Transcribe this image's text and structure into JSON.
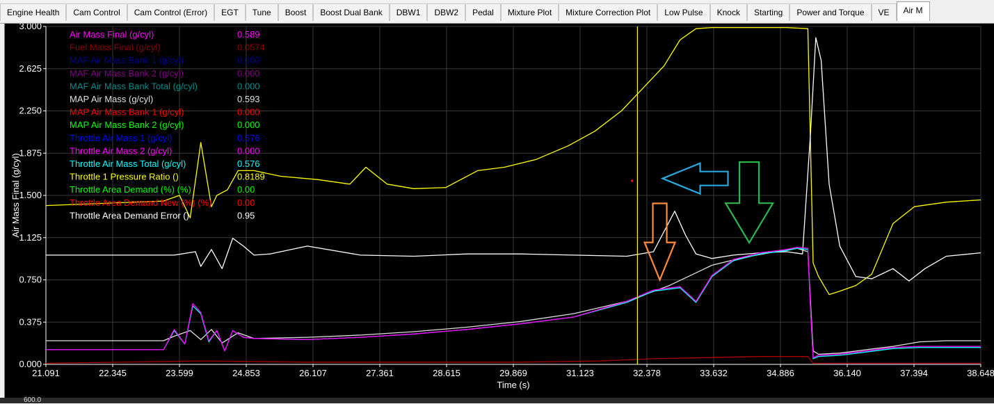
{
  "tabs": [
    {
      "label": "Engine Health"
    },
    {
      "label": "Cam Control"
    },
    {
      "label": "Cam Control (Error)"
    },
    {
      "label": "EGT"
    },
    {
      "label": "Tune"
    },
    {
      "label": "Boost"
    },
    {
      "label": "Boost Dual Bank"
    },
    {
      "label": "DBW1"
    },
    {
      "label": "DBW2"
    },
    {
      "label": "Pedal"
    },
    {
      "label": "Mixture Plot"
    },
    {
      "label": "Mixture Correction Plot"
    },
    {
      "label": "Low Pulse"
    },
    {
      "label": "Knock"
    },
    {
      "label": "Starting"
    },
    {
      "label": "Power and Torque"
    },
    {
      "label": "VE"
    },
    {
      "label": "Air M"
    }
  ],
  "active_tab": 17,
  "bottom_label": "600.0",
  "chart_data": {
    "type": "line",
    "xlabel": "Time (s)",
    "ylabel": "Air Mass Final (g/cyl)",
    "xlim": [
      21.091,
      38.648
    ],
    "ylim": [
      0,
      3.0
    ],
    "x_ticks": [
      "21.091",
      "22.345",
      "23.599",
      "24.853",
      "26.107",
      "27.361",
      "28.615",
      "29.869",
      "31.123",
      "32.378",
      "33.632",
      "34.886",
      "36.140",
      "37.394",
      "38.648"
    ],
    "y_ticks": [
      "0.000",
      "0.375",
      "0.750",
      "1.125",
      "1.500",
      "1.875",
      "2.250",
      "2.625",
      "3.000"
    ],
    "cursor_x": 32.2,
    "legend": [
      {
        "name": "Air Mass Final (g/cyl)",
        "value": "0.589",
        "color": "#ff00ff"
      },
      {
        "name": "Fuel Mass Final (g/cyl)",
        "value": "0.0574",
        "color": "#8b0000"
      },
      {
        "name": "MAF Air Mass Bank 1 (g/cyl)",
        "value": "0.000",
        "color": "#00008b"
      },
      {
        "name": "MAF Air Mass Bank 2  (g/cyl)",
        "value": "0.000",
        "color": "#800080"
      },
      {
        "name": "MAF Air Mass Bank Total (g/cyl)",
        "value": "0.000",
        "color": "#008b8b"
      },
      {
        "name": "MAP Air Mass (g/cyl)",
        "value": "0.593",
        "color": "#e0e0e0"
      },
      {
        "name": "MAP Air Mass Bank 1 (g/cyl)",
        "value": "0.000",
        "color": "#ff0000"
      },
      {
        "name": "MAP Air Mass Bank 2 (g/cyl)",
        "value": "0.000",
        "color": "#00ff00"
      },
      {
        "name": "Throttle Air Mass 1 (g/cyl)",
        "value": "0.576",
        "color": "#0000ff"
      },
      {
        "name": "Throttle Air Mass 2 (g/cyl)",
        "value": "0.000",
        "color": "#ff00ff"
      },
      {
        "name": "Throttle Air Mass Total (g/cyl)",
        "value": "0.576",
        "color": "#00ffff"
      },
      {
        "name": "Throttle 1 Pressure Ratio ()",
        "value": "0.8189",
        "color": "#ffff00"
      },
      {
        "name": "Throttle Area Demand  (%) (%)",
        "value": "0.00",
        "color": "#00ff00"
      },
      {
        "name": "Throttle Area Demand New (%) (%)",
        "value": "0.00",
        "color": "#ff0000"
      },
      {
        "name": "Throttle Area Demand Error ()",
        "value": "0.95",
        "color": "#ffffff"
      }
    ],
    "series": [
      {
        "name": "Throttle 1 Pressure Ratio ()",
        "color": "#ffff00",
        "x": [
          21.091,
          23.3,
          23.6,
          23.8,
          24.0,
          24.2,
          24.3,
          24.5,
          24.7,
          25.0,
          25.5,
          26.2,
          26.8,
          27.1,
          27.5,
          28.0,
          28.6,
          29.2,
          29.7,
          30.3,
          30.9,
          31.4,
          31.9,
          32.3,
          32.7,
          33.0,
          33.3,
          33.6,
          34.0,
          34.5,
          35.0,
          35.4,
          35.5,
          35.6,
          35.8,
          36.0,
          36.3,
          36.6,
          37.0,
          37.4,
          38.0,
          38.648
        ],
        "y": [
          1.41,
          1.45,
          1.5,
          1.3,
          1.97,
          1.4,
          1.5,
          1.55,
          1.72,
          1.72,
          1.67,
          1.64,
          1.6,
          1.75,
          1.6,
          1.56,
          1.57,
          1.72,
          1.75,
          1.82,
          1.94,
          2.07,
          2.25,
          2.45,
          2.65,
          2.88,
          2.98,
          2.99,
          2.99,
          2.99,
          2.99,
          2.98,
          0.9,
          0.78,
          0.62,
          0.65,
          0.7,
          0.8,
          1.25,
          1.4,
          1.44,
          1.46
        ]
      },
      {
        "name": "Throttle Area Demand Error ()",
        "color": "#ffffff",
        "x": [
          21.091,
          23.5,
          23.9,
          24.0,
          24.2,
          24.4,
          24.6,
          24.8,
          25.0,
          25.3,
          26.0,
          27.0,
          28.0,
          29.0,
          30.0,
          31.0,
          32.0,
          32.5,
          32.9,
          33.1,
          33.3,
          33.6,
          34.0,
          34.5,
          35.0,
          35.3,
          35.45,
          35.55,
          35.65,
          35.8,
          36.0,
          36.3,
          36.6,
          37.0,
          37.3,
          37.6,
          38.0,
          38.648
        ],
        "y": [
          0.97,
          0.97,
          1.0,
          0.87,
          1.02,
          0.85,
          1.12,
          1.05,
          0.97,
          0.98,
          1.05,
          0.97,
          0.96,
          0.98,
          0.98,
          0.97,
          0.96,
          1.0,
          1.36,
          1.15,
          0.98,
          0.94,
          0.97,
          0.99,
          1.0,
          0.98,
          2.05,
          2.9,
          2.7,
          1.6,
          1.05,
          0.78,
          0.76,
          0.85,
          0.74,
          0.85,
          0.96,
          0.99
        ]
      },
      {
        "name": "MAP Air Mass (g/cyl)",
        "color": "#e0e0e0",
        "x": [
          21.091,
          23.3,
          23.5,
          23.8,
          24.0,
          24.2,
          24.4,
          24.7,
          25.0,
          26.0,
          27.0,
          28.0,
          29.0,
          30.0,
          31.0,
          32.0,
          32.8,
          33.6,
          34.2,
          34.8,
          35.2,
          35.4,
          35.5,
          35.6,
          36.0,
          36.5,
          37.0,
          37.5,
          38.0,
          38.648
        ],
        "y": [
          0.21,
          0.21,
          0.25,
          0.3,
          0.22,
          0.31,
          0.19,
          0.28,
          0.23,
          0.24,
          0.26,
          0.29,
          0.33,
          0.38,
          0.45,
          0.56,
          0.7,
          0.88,
          0.95,
          1.0,
          1.03,
          1.0,
          0.12,
          0.09,
          0.1,
          0.13,
          0.16,
          0.2,
          0.21,
          0.21
        ]
      },
      {
        "name": "Throttle Air Mass Total (g/cyl)",
        "color": "#00ffff",
        "x": [
          21.091,
          23.3,
          23.5,
          23.7,
          23.85,
          24.0,
          24.15,
          24.3,
          24.45,
          24.6,
          24.8,
          25.0,
          26.0,
          27.0,
          28.0,
          29.0,
          30.0,
          31.0,
          32.0,
          32.5,
          33.0,
          33.3,
          33.6,
          34.0,
          34.5,
          35.0,
          35.2,
          35.4,
          35.45,
          35.5,
          35.6,
          36.0,
          36.5,
          37.0,
          37.5,
          38.0,
          38.648
        ],
        "y": [
          0.13,
          0.13,
          0.3,
          0.18,
          0.52,
          0.45,
          0.2,
          0.3,
          0.12,
          0.3,
          0.24,
          0.23,
          0.22,
          0.24,
          0.27,
          0.31,
          0.36,
          0.42,
          0.55,
          0.65,
          0.68,
          0.55,
          0.78,
          0.92,
          0.98,
          1.01,
          1.03,
          1.02,
          0.5,
          0.05,
          0.07,
          0.08,
          0.11,
          0.14,
          0.15,
          0.15,
          0.15
        ]
      },
      {
        "name": "Air Mass Final (g/cyl)",
        "color": "#ff00ff",
        "x": [
          21.091,
          23.3,
          23.5,
          23.7,
          23.85,
          24.0,
          24.15,
          24.3,
          24.45,
          24.6,
          24.8,
          25.0,
          26.0,
          27.0,
          28.0,
          29.0,
          30.0,
          31.0,
          32.0,
          32.5,
          33.0,
          33.3,
          33.6,
          34.0,
          34.5,
          35.0,
          35.2,
          35.4,
          35.45,
          35.5,
          35.6,
          36.0,
          36.5,
          37.0,
          37.5,
          38.0,
          38.648
        ],
        "y": [
          0.13,
          0.13,
          0.31,
          0.18,
          0.54,
          0.46,
          0.21,
          0.3,
          0.12,
          0.3,
          0.24,
          0.23,
          0.22,
          0.24,
          0.27,
          0.31,
          0.36,
          0.42,
          0.56,
          0.66,
          0.69,
          0.56,
          0.79,
          0.93,
          0.99,
          1.02,
          1.04,
          1.03,
          0.5,
          0.06,
          0.08,
          0.09,
          0.12,
          0.15,
          0.16,
          0.16,
          0.16
        ]
      },
      {
        "name": "Fuel Mass Final (g/cyl)",
        "color": "#b00000",
        "x": [
          21.091,
          24.0,
          26.0,
          28.0,
          30.0,
          31.5,
          32.5,
          33.5,
          34.5,
          35.4,
          35.5,
          36.5,
          38.648
        ],
        "y": [
          0.01,
          0.03,
          0.02,
          0.02,
          0.02,
          0.03,
          0.05,
          0.06,
          0.07,
          0.07,
          0.01,
          0.01,
          0.01
        ]
      }
    ],
    "annotations": [
      {
        "type": "arrow-left",
        "color": "#29a8e0",
        "x": 33.9,
        "y": 1.65
      },
      {
        "type": "arrow-down",
        "color": "#ff8c3a",
        "x": 32.62,
        "y": 0.75
      },
      {
        "type": "arrow-down",
        "color": "#2db84a",
        "x": 34.3,
        "y": 1.08
      }
    ],
    "marker": {
      "color": "#ff0000",
      "x": 32.1,
      "y": 1.63
    }
  }
}
